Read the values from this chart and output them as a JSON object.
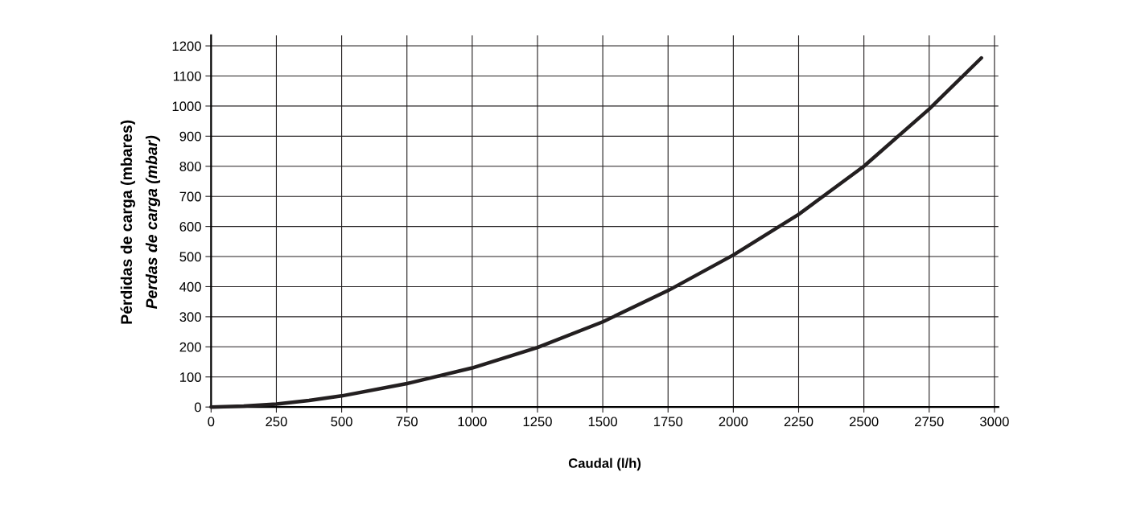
{
  "chart_data": {
    "type": "line",
    "xlabel": "Caudal (l/h)",
    "ylabel": "Pérdidas de carga (mbares)\nPerdas de carga (mbar)",
    "x": [
      0,
      125,
      250,
      375,
      500,
      750,
      1000,
      1250,
      1500,
      1750,
      2000,
      2250,
      2500,
      2750,
      2950
    ],
    "series": [
      {
        "color": "#231f20",
        "values": [
          0,
          3,
          10,
          22,
          37,
          78,
          130,
          198,
          283,
          387,
          505,
          640,
          800,
          990,
          1160
        ]
      }
    ],
    "xlim": [
      0,
      3015
    ],
    "ylim": [
      0,
      1235
    ],
    "xticks": [
      0,
      250,
      500,
      750,
      1000,
      1250,
      1500,
      1750,
      2000,
      2250,
      2500,
      2750,
      3000
    ],
    "yticks": [
      0,
      100,
      200,
      300,
      400,
      500,
      600,
      700,
      800,
      900,
      1000,
      1100,
      1200
    ],
    "grid": true,
    "marker": "none",
    "line_style": "solid"
  }
}
